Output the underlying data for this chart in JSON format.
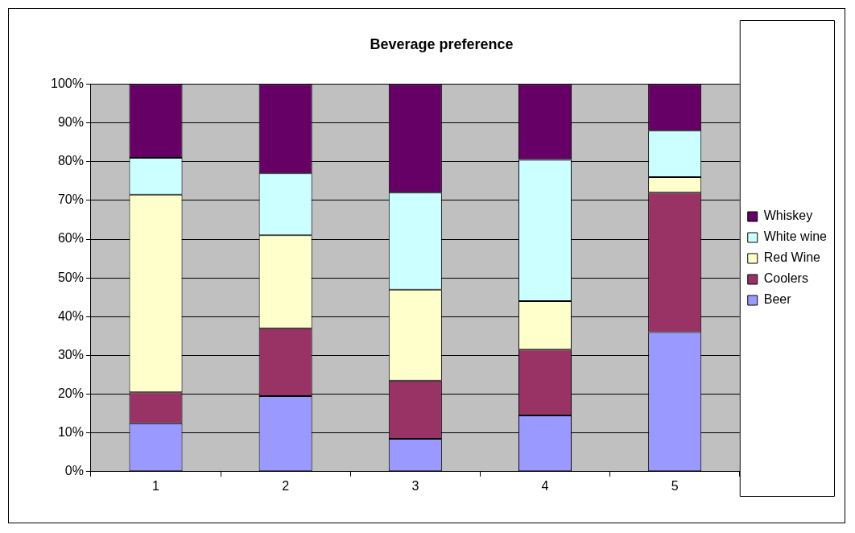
{
  "chart_data": {
    "type": "bar",
    "title": "Beverage preference",
    "stacked": true,
    "categories": [
      "1",
      "2",
      "3",
      "4",
      "5"
    ],
    "series": [
      {
        "name": "Beer",
        "color": "#9999ff",
        "values": [
          12.5,
          19.5,
          8.5,
          14.5,
          36
        ]
      },
      {
        "name": "Coolers",
        "color": "#993366",
        "values": [
          8,
          17.5,
          15,
          17,
          36
        ]
      },
      {
        "name": "Red Wine",
        "color": "#ffffcc",
        "values": [
          51,
          24,
          23.5,
          12.5,
          4
        ]
      },
      {
        "name": "White wine",
        "color": "#ccffff",
        "values": [
          9.5,
          16,
          25,
          36.5,
          12
        ]
      },
      {
        "name": "Whiskey",
        "color": "#660066",
        "values": [
          19,
          23,
          28,
          19.5,
          12
        ]
      }
    ],
    "ylim": [
      0,
      100
    ],
    "yticks": [
      {
        "value": 0,
        "label": "0%"
      },
      {
        "value": 10,
        "label": "10%"
      },
      {
        "value": 20,
        "label": "20%"
      },
      {
        "value": 30,
        "label": "30%"
      },
      {
        "value": 40,
        "label": "40%"
      },
      {
        "value": 50,
        "label": "50%"
      },
      {
        "value": 60,
        "label": "60%"
      },
      {
        "value": 70,
        "label": "70%"
      },
      {
        "value": 80,
        "label": "80%"
      },
      {
        "value": 90,
        "label": "90%"
      },
      {
        "value": 100,
        "label": "100%"
      }
    ],
    "grid": "y",
    "legend": "right"
  }
}
